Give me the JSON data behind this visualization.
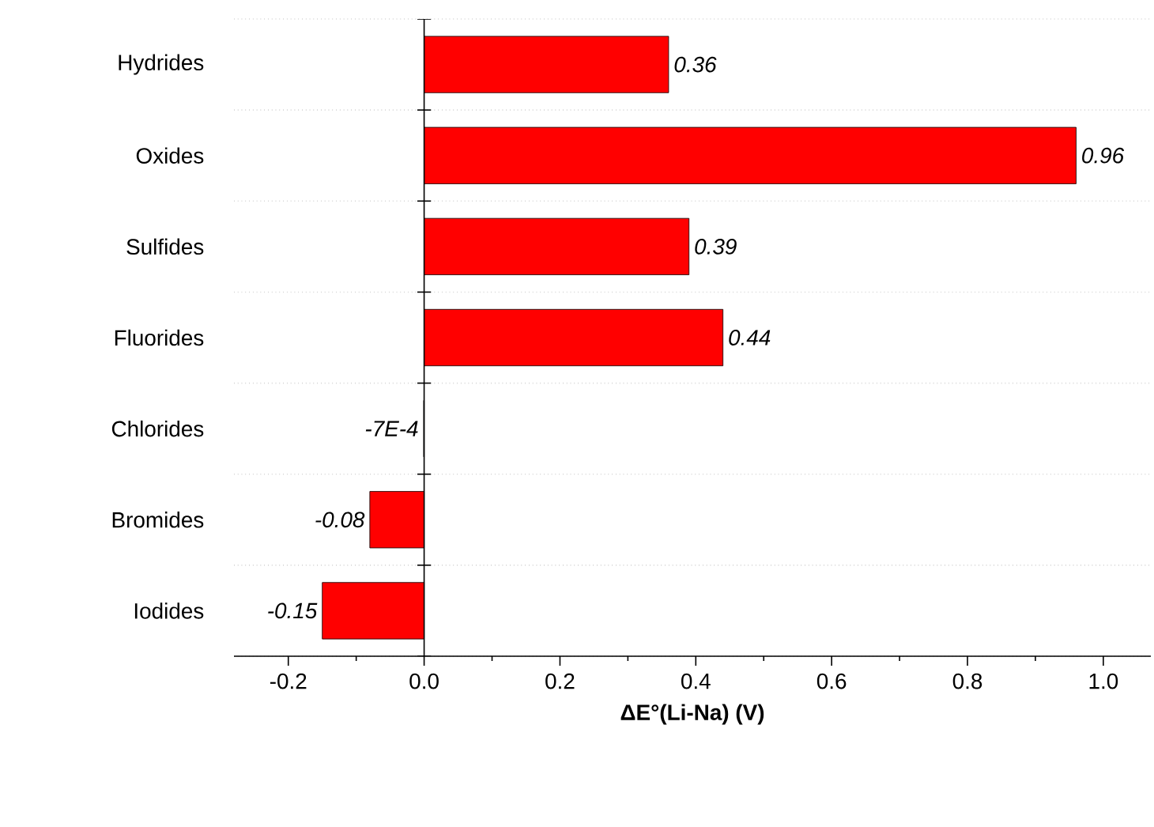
{
  "chart_data": {
    "type": "bar",
    "orientation": "horizontal",
    "xlabel": "ΔE°(Li-Na) (V)",
    "categories": [
      "Hydrides",
      "Oxides",
      "Sulfides",
      "Fluorides",
      "Chlorides",
      "Bromides",
      "Iodides"
    ],
    "values": [
      0.36,
      0.96,
      0.39,
      0.44,
      -0.0007,
      -0.08,
      -0.15
    ],
    "value_labels": [
      "0.36",
      "0.96",
      "0.39",
      "0.44",
      "-7E-4",
      "-0.08",
      "-0.15"
    ],
    "color": "#ff0000",
    "xlim": [
      -0.28,
      1.07
    ],
    "xticks": [
      -0.2,
      {
        "value": 0,
        "label": "0.0"
      },
      0.2,
      0.4,
      0.6,
      0.8,
      {
        "value": 1,
        "label": "1.0"
      }
    ],
    "grid": "y"
  }
}
